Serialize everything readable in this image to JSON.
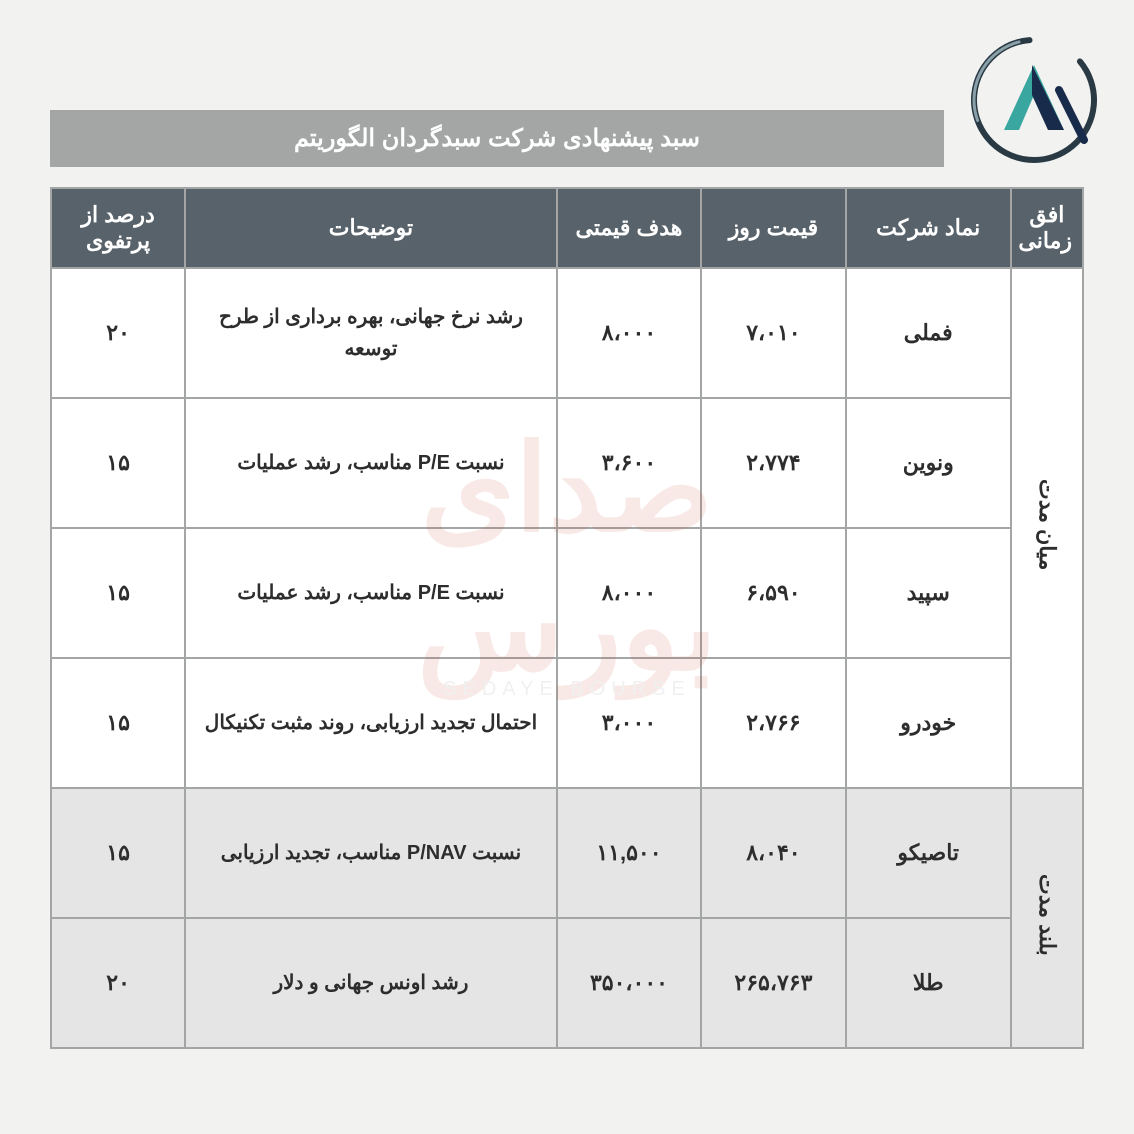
{
  "title": "سبد پیشنهادی شرکت سبدگردان الگوریتم",
  "columns": {
    "horizon": "افق زمانی",
    "symbol": "نماد شرکت",
    "price": "قیمت روز",
    "target": "هدف قیمتی",
    "desc": "توضیحات",
    "percent": "درصد از پرتفوی"
  },
  "col_widths": {
    "horizon": "7%",
    "symbol": "16%",
    "price": "14%",
    "target": "14%",
    "desc": "36%",
    "percent": "13%"
  },
  "groups": [
    {
      "horizon": "میان مدت",
      "rows": [
        {
          "symbol": "فملی",
          "price": "۷،۰۱۰",
          "target": "۸،۰۰۰",
          "desc": "رشد نرخ جهانی، بهره برداری از طرح توسعه",
          "percent": "۲۰",
          "alt": false
        },
        {
          "symbol": "ونوین",
          "price": "۲،۷۷۴",
          "target": "۳،۶۰۰",
          "desc": "نسبت P/E مناسب، رشد عملیات",
          "percent": "۱۵",
          "alt": false
        },
        {
          "symbol": "سپید",
          "price": "۶،۵۹۰",
          "target": "۸،۰۰۰",
          "desc": "نسبت P/E مناسب، رشد عملیات",
          "percent": "۱۵",
          "alt": false
        },
        {
          "symbol": "خودرو",
          "price": "۲،۷۶۶",
          "target": "۳،۰۰۰",
          "desc": "احتمال تجدید ارزیابی، روند مثبت تکنیکال",
          "percent": "۱۵",
          "alt": false
        }
      ]
    },
    {
      "horizon": "بلند مدت",
      "rows": [
        {
          "symbol": "تاصیکو",
          "price": "۸،۰۴۰",
          "target": "۱۱,۵۰۰",
          "desc": "نسبت P/NAV مناسب، تجدید ارزیابی",
          "percent": "۱۵",
          "alt": true
        },
        {
          "symbol": "طلا",
          "price": "۲۶۵،۷۶۳",
          "target": "۳۵۰،۰۰۰",
          "desc": "رشد اونس جهانی و دلار",
          "percent": "۲۰",
          "alt": true
        }
      ]
    }
  ],
  "watermark": {
    "main": "صدای بورس",
    "sub": "SEDAYE BOURSE"
  },
  "colors": {
    "page_bg": "#f2f2f0",
    "titlebar_bg": "#a3a6a5",
    "titlebar_text": "#ffffff",
    "header_bg": "#58626a",
    "header_text": "#ffffff",
    "cell_bg": "#ffffff",
    "cell_alt_bg": "#e4e5e4",
    "border": "#a3a6a5",
    "text": "#2d2d2d",
    "logo_ring": "#2a3a45",
    "logo_teal": "#3aa6a0",
    "logo_navy": "#182b4a",
    "watermark_color": "#c94f3a"
  },
  "fonts": {
    "title_size": 24,
    "header_size": 22,
    "cell_size": 22,
    "desc_size": 20
  }
}
